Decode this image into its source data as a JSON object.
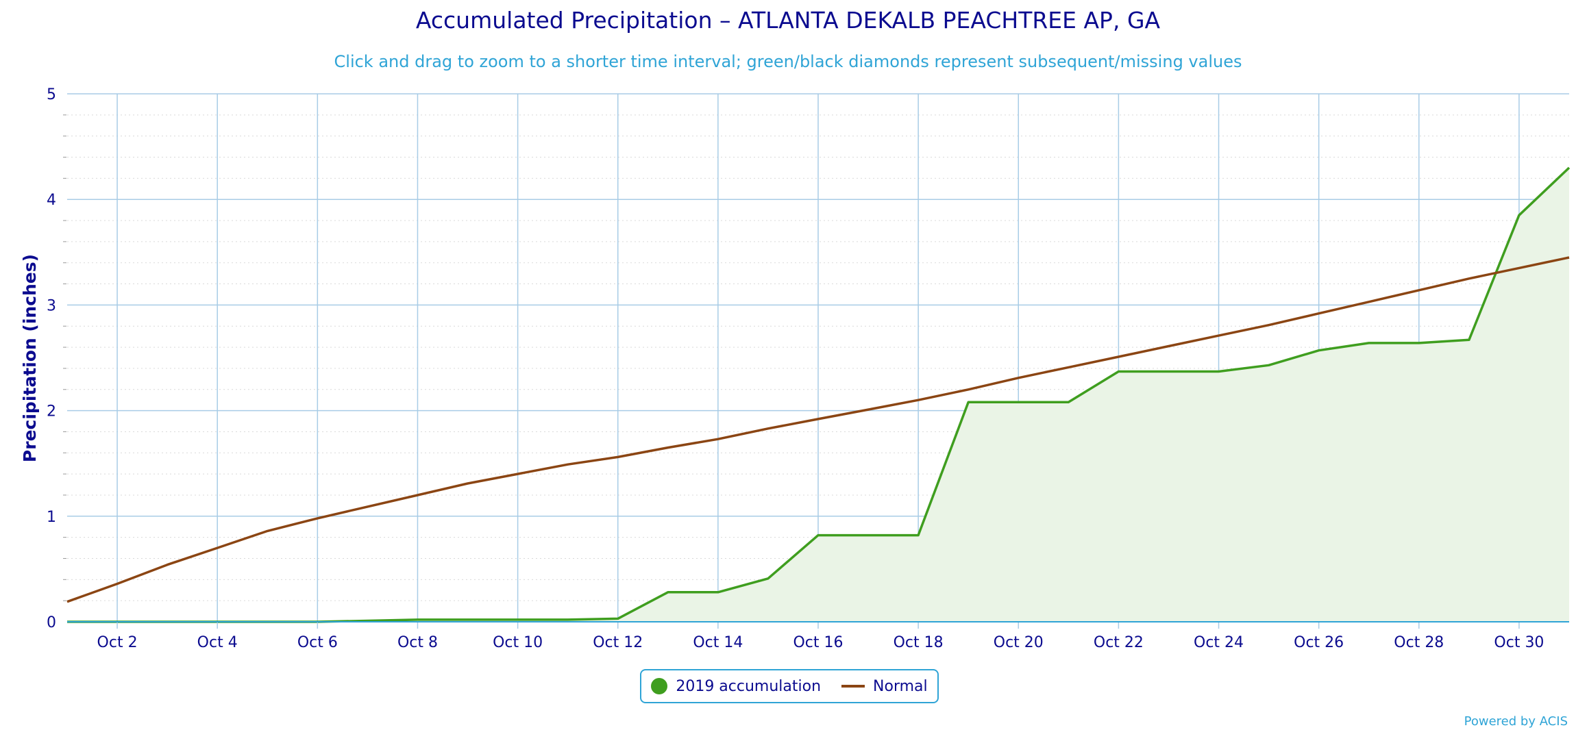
{
  "chart_data": {
    "type": "area",
    "title": "Accumulated Precipitation – ATLANTA DEKALB PEACHTREE AP, GA",
    "subtitle": "Click and drag to zoom to a shorter time interval; green/black diamonds represent subsequent/missing values",
    "ylabel": "Precipitation (inches)",
    "xlabel": "",
    "x_ticks": [
      "Oct 2",
      "Oct 4",
      "Oct 6",
      "Oct 8",
      "Oct 10",
      "Oct 12",
      "Oct 14",
      "Oct 16",
      "Oct 18",
      "Oct 20",
      "Oct 22",
      "Oct 24",
      "Oct 26",
      "Oct 28",
      "Oct 30"
    ],
    "y_ticks": [
      "0",
      "1",
      "2",
      "3",
      "4",
      "5"
    ],
    "ylim": [
      0,
      5
    ],
    "xlim_days": [
      1,
      31
    ],
    "grid": true,
    "legend_position": "bottom-center",
    "series": [
      {
        "name": "2019 accumulation",
        "color": "#3f9e1f",
        "fill": "#eaf4e6",
        "kind": "area",
        "x": [
          1,
          2,
          3,
          4,
          5,
          6,
          7,
          8,
          9,
          10,
          11,
          12,
          13,
          14,
          15,
          16,
          17,
          18,
          19,
          20,
          21,
          22,
          23,
          24,
          25,
          26,
          27,
          28,
          29,
          30,
          31
        ],
        "values": [
          0,
          0,
          0,
          0,
          0,
          0,
          0.01,
          0.02,
          0.02,
          0.02,
          0.02,
          0.03,
          0.28,
          0.28,
          0.41,
          0.82,
          0.82,
          0.82,
          2.08,
          2.08,
          2.08,
          2.37,
          2.37,
          2.37,
          2.43,
          2.57,
          2.64,
          2.64,
          2.67,
          3.85,
          4.3
        ]
      },
      {
        "name": "Normal",
        "color": "#8b4513",
        "kind": "line",
        "x": [
          1,
          2,
          3,
          4,
          5,
          6,
          7,
          8,
          9,
          10,
          11,
          12,
          13,
          14,
          15,
          16,
          17,
          18,
          19,
          20,
          21,
          22,
          23,
          24,
          25,
          26,
          27,
          28,
          29,
          30,
          31
        ],
        "values": [
          0.19,
          0.36,
          0.54,
          0.7,
          0.86,
          0.98,
          1.09,
          1.2,
          1.31,
          1.4,
          1.49,
          1.56,
          1.65,
          1.73,
          1.83,
          1.92,
          2.01,
          2.1,
          2.2,
          2.31,
          2.41,
          2.51,
          2.61,
          2.71,
          2.81,
          2.92,
          3.03,
          3.14,
          3.25,
          3.35,
          3.45
        ]
      }
    ]
  },
  "footer": {
    "credit": "Powered by ACIS"
  }
}
